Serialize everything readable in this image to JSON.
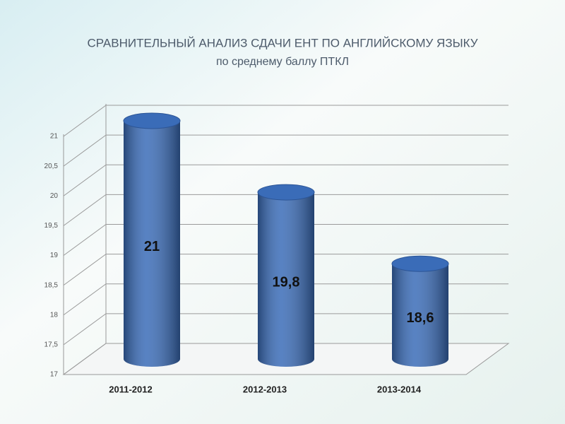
{
  "chart_data": {
    "type": "bar",
    "title": "СРАВНИТЕЛЬНЫЙ АНАЛИЗ СДАЧИ ЕНТ ПО АНГЛИЙСКОМУ ЯЗЫКУ",
    "subtitle": "по среднему баллу ПТКЛ",
    "categories": [
      "2011-2012",
      "2012-2013",
      "2013-2014"
    ],
    "values": [
      21,
      19.8,
      18.6
    ],
    "value_labels": [
      "21",
      "19,8",
      "18,6"
    ],
    "color": "#3a6cb8",
    "ylim": [
      17,
      21
    ],
    "yticks": [
      17,
      {
        "value": 17.5,
        "label": "17,5"
      },
      18,
      {
        "value": 18.5,
        "label": "18,5"
      },
      19,
      {
        "value": 19.5,
        "label": "19,5"
      },
      20,
      {
        "value": 20.5,
        "label": "20,5"
      },
      21
    ],
    "grid": true
  }
}
